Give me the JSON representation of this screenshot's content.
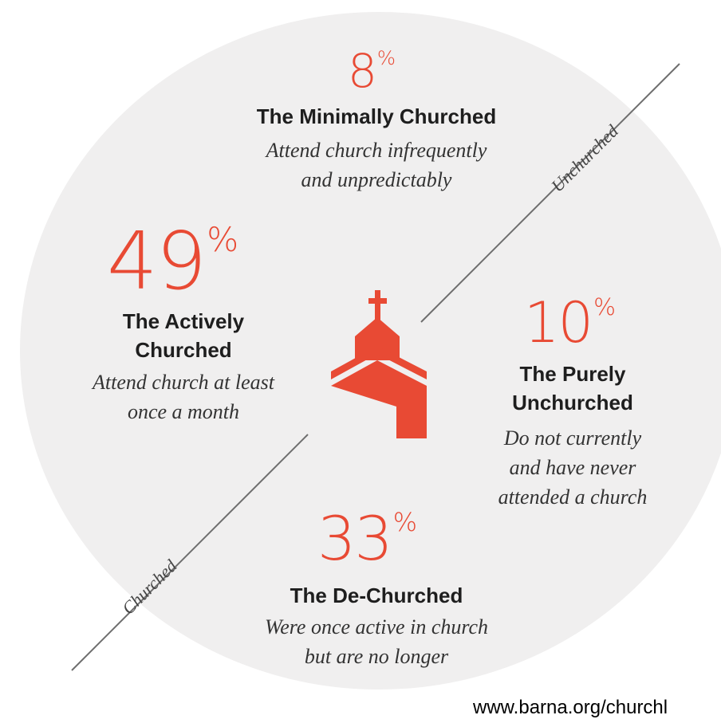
{
  "segments": [
    {
      "id": "minimally",
      "percent": "8",
      "percent_sign": "%",
      "title": "The Minimally Churched",
      "description_lines": [
        "Attend church infrequently",
        "and unpredictably"
      ]
    },
    {
      "id": "actively",
      "percent": "49",
      "percent_sign": "%",
      "title_lines": [
        "The Actively",
        "Churched"
      ],
      "description_lines": [
        "Attend church at least",
        "once a month"
      ]
    },
    {
      "id": "purely",
      "percent": "10",
      "percent_sign": "%",
      "title_lines": [
        "The Purely",
        "Unchurched"
      ],
      "description_lines": [
        "Do not currently",
        "and have never",
        "attended a church"
      ]
    },
    {
      "id": "dechurched",
      "percent": "33",
      "percent_sign": "%",
      "title": "The De-Churched",
      "description_lines": [
        "Were once active in church",
        "but are no longer"
      ]
    }
  ],
  "axis_labels": {
    "upper": "Unchurched",
    "lower": "Churched"
  },
  "source_url": "www.barna.org/churchl",
  "colors": {
    "accent": "#e84a34",
    "disc": "#f0efef",
    "text": "#1e1e1e"
  },
  "icons": {
    "center": "church-icon"
  }
}
